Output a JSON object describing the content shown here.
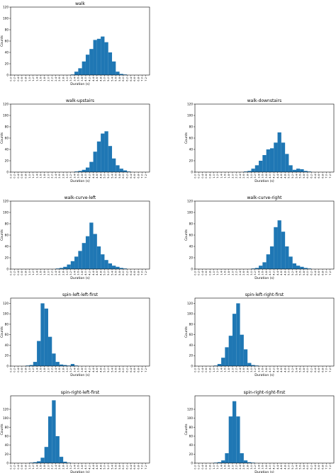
{
  "figure": {
    "xlabel": "Duration (s)",
    "ylabel": "Counts",
    "bar_color": "#1f77b4"
  },
  "chart_data": [
    {
      "type": "bar",
      "title": "walk",
      "xlabel": "Duration (s)",
      "ylabel": "Counts",
      "xlim": [
        0,
        7.4
      ],
      "ylim": [
        0,
        120
      ],
      "yticks": [
        0,
        20,
        40,
        60,
        80,
        100,
        120
      ],
      "xticks": [
        "0.0",
        "0.2",
        "0.4",
        "0.6",
        "0.8",
        "1.0",
        "1.2",
        "1.4",
        "1.6",
        "1.8",
        "2.0",
        "2.2",
        "2.4",
        "2.6",
        "2.8",
        "3.0",
        "3.2",
        "3.4",
        "3.6",
        "3.8",
        "4.0",
        "4.2",
        "4.4",
        "4.6",
        "4.8",
        "5.0",
        "5.2",
        "5.4",
        "5.6",
        "5.8",
        "6.0",
        "6.2",
        "6.4",
        "6.6",
        "6.8",
        "7.0",
        "7.2"
      ],
      "bin_width": 0.2,
      "bins": [
        [
          3.2,
          1
        ],
        [
          3.4,
          6
        ],
        [
          3.6,
          12
        ],
        [
          3.8,
          24
        ],
        [
          4.0,
          36
        ],
        [
          4.2,
          46
        ],
        [
          4.4,
          62
        ],
        [
          4.6,
          64
        ],
        [
          4.8,
          68
        ],
        [
          5.0,
          58
        ],
        [
          5.2,
          40
        ],
        [
          5.4,
          24
        ],
        [
          5.6,
          6
        ],
        [
          5.8,
          2
        ],
        [
          6.0,
          1
        ]
      ]
    },
    {
      "type": "bar",
      "title": "walk-upstairs",
      "xlabel": "Duration (s)",
      "ylabel": "Counts",
      "xlim": [
        0,
        7.4
      ],
      "ylim": [
        0,
        120
      ],
      "yticks": [
        0,
        20,
        40,
        60,
        80,
        100,
        120
      ],
      "xticks": [
        "0.0",
        "0.2",
        "0.4",
        "0.6",
        "0.8",
        "1.0",
        "1.2",
        "1.4",
        "1.6",
        "1.8",
        "2.0",
        "2.2",
        "2.4",
        "2.6",
        "2.8",
        "3.0",
        "3.2",
        "3.4",
        "3.6",
        "3.8",
        "4.0",
        "4.2",
        "4.4",
        "4.6",
        "4.8",
        "5.0",
        "5.2",
        "5.4",
        "5.6",
        "5.8",
        "6.0",
        "6.2",
        "6.4",
        "6.6",
        "6.8",
        "7.0",
        "7.2"
      ],
      "bin_width": 0.2,
      "bins": [
        [
          3.4,
          1
        ],
        [
          3.6,
          2
        ],
        [
          3.8,
          4
        ],
        [
          4.0,
          8
        ],
        [
          4.2,
          18
        ],
        [
          4.4,
          36
        ],
        [
          4.6,
          54
        ],
        [
          4.8,
          68
        ],
        [
          5.0,
          72
        ],
        [
          5.2,
          46
        ],
        [
          5.4,
          24
        ],
        [
          5.6,
          12
        ],
        [
          5.8,
          6
        ],
        [
          6.0,
          3
        ],
        [
          6.2,
          1
        ]
      ]
    },
    {
      "type": "bar",
      "title": "walk-downstairs",
      "xlabel": "Duration (s)",
      "ylabel": "Counts",
      "xlim": [
        0,
        7.4
      ],
      "ylim": [
        0,
        120
      ],
      "yticks": [
        0,
        20,
        40,
        60,
        80,
        100,
        120
      ],
      "xticks": [
        "0.0",
        "0.2",
        "0.4",
        "0.6",
        "0.8",
        "1.0",
        "1.2",
        "1.4",
        "1.6",
        "1.8",
        "2.0",
        "2.2",
        "2.4",
        "2.6",
        "2.8",
        "3.0",
        "3.2",
        "3.4",
        "3.6",
        "3.8",
        "4.0",
        "4.2",
        "4.4",
        "4.6",
        "4.8",
        "5.0",
        "5.2",
        "5.4",
        "5.6",
        "5.8",
        "6.0",
        "6.2",
        "6.4",
        "6.6",
        "6.8",
        "7.0",
        "7.2"
      ],
      "bin_width": 0.2,
      "bins": [
        [
          2.6,
          1
        ],
        [
          2.8,
          2
        ],
        [
          3.0,
          6
        ],
        [
          3.2,
          12
        ],
        [
          3.4,
          20
        ],
        [
          3.6,
          30
        ],
        [
          3.8,
          40
        ],
        [
          4.0,
          42
        ],
        [
          4.2,
          52
        ],
        [
          4.4,
          70
        ],
        [
          4.6,
          52
        ],
        [
          4.8,
          32
        ],
        [
          5.0,
          12
        ],
        [
          5.2,
          4
        ],
        [
          5.4,
          6
        ],
        [
          5.6,
          5
        ],
        [
          5.8,
          2
        ],
        [
          6.0,
          1
        ]
      ]
    },
    {
      "type": "bar",
      "title": "walk-curve-left",
      "xlabel": "Duration (s)",
      "ylabel": "Counts",
      "xlim": [
        0,
        7.4
      ],
      "ylim": [
        0,
        120
      ],
      "yticks": [
        0,
        20,
        40,
        60,
        80,
        100,
        120
      ],
      "xticks": [
        "0.0",
        "0.2",
        "0.4",
        "0.6",
        "0.8",
        "1.0",
        "1.2",
        "1.4",
        "1.6",
        "1.8",
        "2.0",
        "2.2",
        "2.4",
        "2.6",
        "2.8",
        "3.0",
        "3.2",
        "3.4",
        "3.6",
        "3.8",
        "4.0",
        "4.2",
        "4.4",
        "4.6",
        "4.8",
        "5.0",
        "5.2",
        "5.4",
        "5.6",
        "5.8",
        "6.0",
        "6.2",
        "6.4",
        "6.6",
        "6.8",
        "7.0",
        "7.2"
      ],
      "bin_width": 0.2,
      "bins": [
        [
          2.4,
          1
        ],
        [
          2.6,
          2
        ],
        [
          2.8,
          4
        ],
        [
          3.0,
          8
        ],
        [
          3.2,
          14
        ],
        [
          3.4,
          22
        ],
        [
          3.6,
          32
        ],
        [
          3.8,
          46
        ],
        [
          4.0,
          58
        ],
        [
          4.2,
          82
        ],
        [
          4.4,
          62
        ],
        [
          4.6,
          40
        ],
        [
          4.8,
          26
        ],
        [
          5.0,
          16
        ],
        [
          5.2,
          10
        ],
        [
          5.4,
          6
        ],
        [
          5.6,
          4
        ],
        [
          5.8,
          2
        ],
        [
          6.0,
          1
        ]
      ]
    },
    {
      "type": "bar",
      "title": "walk-curve-right",
      "xlabel": "Duration (s)",
      "ylabel": "Counts",
      "xlim": [
        0,
        7.4
      ],
      "ylim": [
        0,
        120
      ],
      "yticks": [
        0,
        20,
        40,
        60,
        80,
        100,
        120
      ],
      "xticks": [
        "0.0",
        "0.2",
        "0.4",
        "0.6",
        "0.8",
        "1.0",
        "1.2",
        "1.4",
        "1.6",
        "1.8",
        "2.0",
        "2.2",
        "2.4",
        "2.6",
        "2.8",
        "3.0",
        "3.2",
        "3.4",
        "3.6",
        "3.8",
        "4.0",
        "4.2",
        "4.4",
        "4.6",
        "4.8",
        "5.0",
        "5.2",
        "5.4",
        "5.6",
        "5.8",
        "6.0",
        "6.2",
        "6.4",
        "6.6",
        "6.8",
        "7.0",
        "7.2"
      ],
      "bin_width": 0.2,
      "bins": [
        [
          3.0,
          1
        ],
        [
          3.2,
          2
        ],
        [
          3.4,
          6
        ],
        [
          3.6,
          12
        ],
        [
          3.8,
          26
        ],
        [
          4.0,
          40
        ],
        [
          4.2,
          74
        ],
        [
          4.4,
          86
        ],
        [
          4.6,
          66
        ],
        [
          4.8,
          40
        ],
        [
          5.0,
          22
        ],
        [
          5.2,
          10
        ],
        [
          5.4,
          6
        ],
        [
          5.6,
          4
        ],
        [
          5.8,
          2
        ],
        [
          6.0,
          1
        ]
      ]
    },
    {
      "type": "bar",
      "title": "spin-left-left-first",
      "xlabel": "Duration (s)",
      "ylabel": "Counts",
      "xlim": [
        0,
        7.4
      ],
      "ylim": [
        0,
        130
      ],
      "yticks": [
        0,
        20,
        40,
        60,
        80,
        100,
        120
      ],
      "xticks": [
        "0.0",
        "0.2",
        "0.4",
        "0.6",
        "0.8",
        "1.0",
        "1.2",
        "1.4",
        "1.6",
        "1.8",
        "2.0",
        "2.2",
        "2.4",
        "2.6",
        "2.8",
        "3.0",
        "3.2",
        "3.4",
        "3.6",
        "3.8",
        "4.0",
        "4.2",
        "4.4",
        "4.6",
        "4.8",
        "5.0",
        "5.2",
        "5.4",
        "5.6",
        "5.8",
        "6.0",
        "6.2",
        "6.4",
        "6.6",
        "6.8",
        "7.0",
        "7.2"
      ],
      "bin_width": 0.2,
      "bins": [
        [
          0.8,
          1
        ],
        [
          1.0,
          2
        ],
        [
          1.2,
          8
        ],
        [
          1.4,
          48
        ],
        [
          1.6,
          120
        ],
        [
          1.8,
          110
        ],
        [
          2.0,
          56
        ],
        [
          2.2,
          24
        ],
        [
          2.4,
          8
        ],
        [
          2.6,
          3
        ],
        [
          2.8,
          2
        ],
        [
          3.0,
          1
        ],
        [
          3.2,
          4
        ],
        [
          3.4,
          1
        ]
      ]
    },
    {
      "type": "bar",
      "title": "spin-left-right-first",
      "xlabel": "Duration (s)",
      "ylabel": "Counts",
      "xlim": [
        0,
        7.4
      ],
      "ylim": [
        0,
        130
      ],
      "yticks": [
        0,
        20,
        40,
        60,
        80,
        100,
        120
      ],
      "xticks": [
        "0.0",
        "0.2",
        "0.4",
        "0.6",
        "0.8",
        "1.0",
        "1.2",
        "1.4",
        "1.6",
        "1.8",
        "2.0",
        "2.2",
        "2.4",
        "2.6",
        "2.8",
        "3.0",
        "3.2",
        "3.4",
        "3.6",
        "3.8",
        "4.0",
        "4.2",
        "4.4",
        "4.6",
        "4.8",
        "5.0",
        "5.2",
        "5.4",
        "5.6",
        "5.8",
        "6.0",
        "6.2",
        "6.4",
        "6.6",
        "6.8",
        "7.0",
        "7.2"
      ],
      "bin_width": 0.2,
      "bins": [
        [
          1.0,
          1
        ],
        [
          1.2,
          4
        ],
        [
          1.4,
          16
        ],
        [
          1.6,
          36
        ],
        [
          1.8,
          58
        ],
        [
          2.0,
          100
        ],
        [
          2.2,
          120
        ],
        [
          2.4,
          60
        ],
        [
          2.6,
          32
        ],
        [
          2.8,
          6
        ],
        [
          3.0,
          2
        ],
        [
          3.2,
          1
        ]
      ]
    },
    {
      "type": "bar",
      "title": "spin-right-left-first",
      "xlabel": "Duration (s)",
      "ylabel": "Counts",
      "xlim": [
        0,
        7.4
      ],
      "ylim": [
        0,
        150
      ],
      "yticks": [
        0,
        20,
        40,
        60,
        80,
        100,
        120
      ],
      "xticks": [
        "0.0",
        "0.2",
        "0.4",
        "0.6",
        "0.8",
        "1.0",
        "1.2",
        "1.4",
        "1.6",
        "1.8",
        "2.0",
        "2.2",
        "2.4",
        "2.6",
        "2.8",
        "3.0",
        "3.2",
        "3.4",
        "3.6",
        "3.8",
        "4.0",
        "4.2",
        "4.4",
        "4.6",
        "4.8",
        "5.0",
        "5.2",
        "5.4",
        "5.6",
        "5.8",
        "6.0",
        "6.2",
        "6.4",
        "6.6",
        "6.8",
        "7.0",
        "7.2"
      ],
      "bin_width": 0.2,
      "bins": [
        [
          1.0,
          1
        ],
        [
          1.2,
          2
        ],
        [
          1.4,
          4
        ],
        [
          1.6,
          12
        ],
        [
          1.8,
          36
        ],
        [
          2.0,
          104
        ],
        [
          2.2,
          140
        ],
        [
          2.4,
          60
        ],
        [
          2.6,
          14
        ],
        [
          2.8,
          3
        ],
        [
          3.0,
          1
        ]
      ]
    },
    {
      "type": "bar",
      "title": "spin-right-right-first",
      "xlabel": "Duration (s)",
      "ylabel": "Counts",
      "xlim": [
        0,
        7.4
      ],
      "ylim": [
        0,
        150
      ],
      "yticks": [
        0,
        20,
        40,
        60,
        80,
        100,
        120
      ],
      "xticks": [
        "0.0",
        "0.2",
        "0.4",
        "0.6",
        "0.8",
        "1.0",
        "1.2",
        "1.4",
        "1.6",
        "1.8",
        "2.0",
        "2.2",
        "2.4",
        "2.6",
        "2.8",
        "3.0",
        "3.2",
        "3.4",
        "3.6",
        "3.8",
        "4.0",
        "4.2",
        "4.4",
        "4.6",
        "4.8",
        "5.0",
        "5.2",
        "5.4",
        "5.6",
        "5.8",
        "6.0",
        "6.2",
        "6.4",
        "6.6",
        "6.8",
        "7.0",
        "7.2"
      ],
      "bin_width": 0.2,
      "bins": [
        [
          1.0,
          1
        ],
        [
          1.2,
          2
        ],
        [
          1.4,
          6
        ],
        [
          1.6,
          22
        ],
        [
          1.8,
          104
        ],
        [
          2.0,
          138
        ],
        [
          2.2,
          104
        ],
        [
          2.4,
          22
        ],
        [
          2.6,
          6
        ],
        [
          2.8,
          2
        ],
        [
          3.0,
          1
        ]
      ]
    }
  ]
}
